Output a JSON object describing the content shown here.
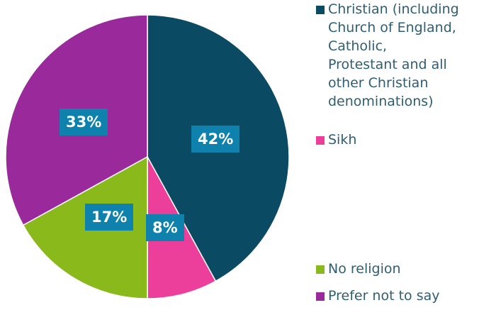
{
  "chart_data": {
    "type": "pie",
    "title": "",
    "start_angle_deg": 0,
    "direction": "clockwise",
    "slices": [
      {
        "label": "Christian (including Church of England, Catholic, Protestant and all other Christian denominations)",
        "value": 42,
        "display": "42%",
        "color": "#0b4a63"
      },
      {
        "label": "Sikh",
        "value": 8,
        "display": "8%",
        "color": "#ec3f9b"
      },
      {
        "label": "No religion",
        "value": 17,
        "display": "17%",
        "color": "#8ab91b"
      },
      {
        "label": "Prefer not to say",
        "value": 33,
        "display": "33%",
        "color": "#9a2a9c"
      }
    ],
    "data_label_color": "#0f81ad",
    "legend": {
      "placement": "right",
      "entries": [
        "Christian (including\nChurch of England,\nCatholic,\nProtestant and all\nother Christian\ndenominations)",
        "Sikh",
        "No religion",
        "Prefer not to say"
      ]
    }
  }
}
